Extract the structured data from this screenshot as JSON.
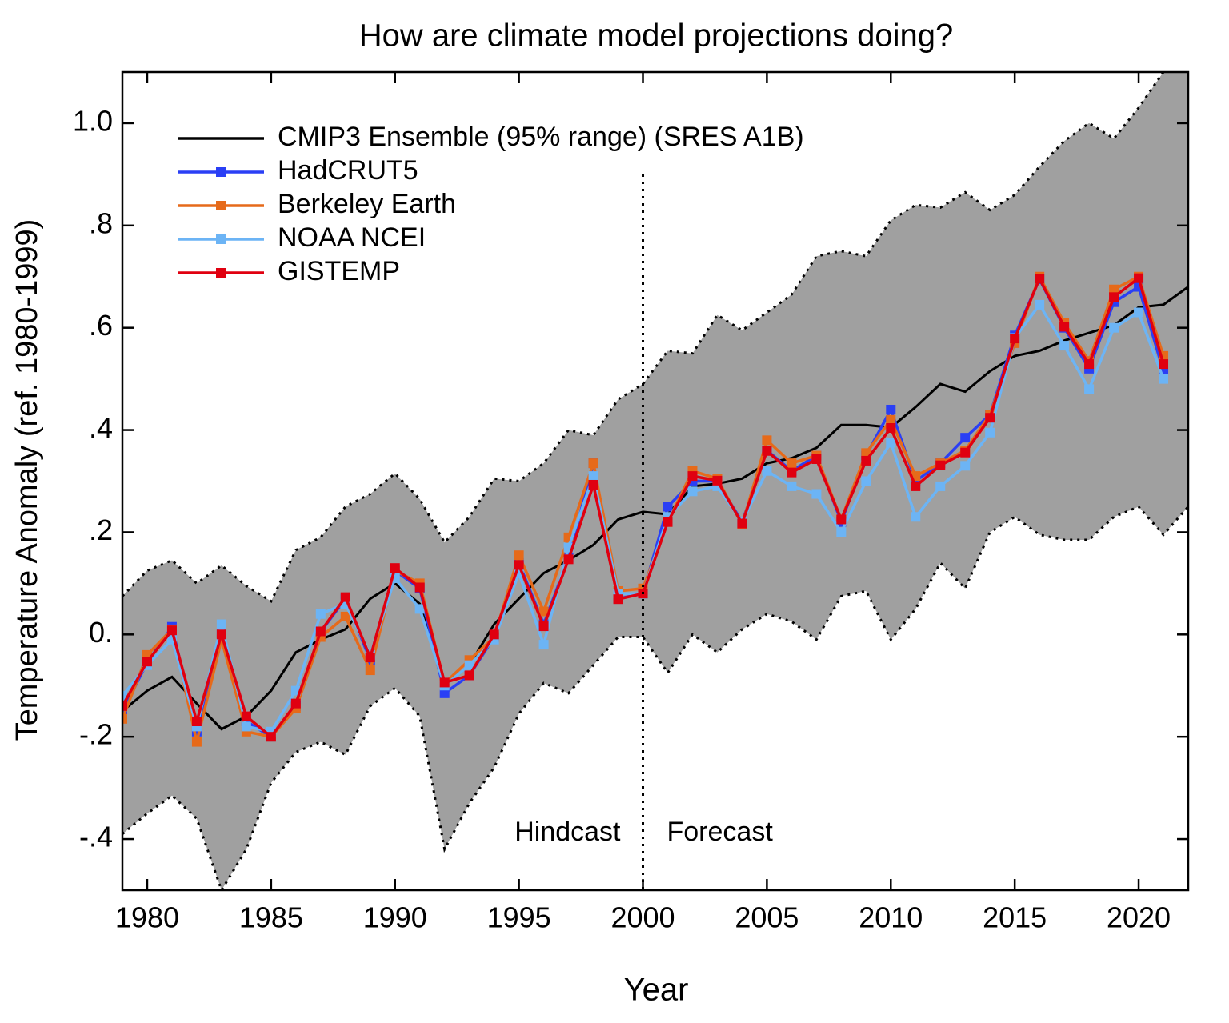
{
  "chart_data": {
    "type": "line",
    "title": "How are climate model projections doing?",
    "xlabel": "Year",
    "ylabel": "Temperature Anomaly (ref. 1980-1999)",
    "x": [
      1979,
      1980,
      1981,
      1982,
      1983,
      1984,
      1985,
      1986,
      1987,
      1988,
      1989,
      1990,
      1991,
      1992,
      1993,
      1994,
      1995,
      1996,
      1997,
      1998,
      1999,
      2000,
      2001,
      2002,
      2003,
      2004,
      2005,
      2006,
      2007,
      2008,
      2009,
      2010,
      2011,
      2012,
      2013,
      2014,
      2015,
      2016,
      2017,
      2018,
      2019,
      2020,
      2021,
      2022
    ],
    "xlim": [
      1979,
      2022
    ],
    "xticks": [
      1980,
      1985,
      1990,
      1995,
      2000,
      2005,
      2010,
      2015,
      2020
    ],
    "ylim": [
      -0.5,
      1.1
    ],
    "yticks": [
      {
        "value": -0.4,
        "label": "-.4"
      },
      {
        "value": -0.2,
        "label": "-.2"
      },
      {
        "value": 0,
        "label": "0."
      },
      {
        "value": 0.2,
        "label": ".2"
      },
      {
        "value": 0.4,
        "label": ".4"
      },
      {
        "value": 0.6,
        "label": ".6"
      },
      {
        "value": 0.8,
        "label": ".8"
      },
      {
        "value": 1.0,
        "label": "1.0"
      }
    ],
    "legend": "upper left",
    "band_color": "#a0a0a0",
    "divider": {
      "x": 2000,
      "left_label": "Hindcast",
      "right_label": "Forecast"
    },
    "series": [
      {
        "name": "CMIP3 Ensemble (95% range) (SRES A1B)",
        "color": "#000000",
        "values": [
          -0.15,
          -0.11,
          -0.083,
          -0.135,
          -0.185,
          -0.16,
          -0.11,
          -0.035,
          -0.01,
          0.01,
          0.07,
          0.1,
          0.06,
          -0.1,
          -0.06,
          0.02,
          0.07,
          0.12,
          0.145,
          0.175,
          0.225,
          0.24,
          0.235,
          0.29,
          0.295,
          0.305,
          0.335,
          0.345,
          0.365,
          0.41,
          0.41,
          0.405,
          0.445,
          0.49,
          0.475,
          0.515,
          0.545,
          0.555,
          0.575,
          0.59,
          0.605,
          0.64,
          0.645,
          0.68
        ],
        "upper": [
          0.075,
          0.125,
          0.145,
          0.1,
          0.135,
          0.095,
          0.065,
          0.165,
          0.19,
          0.25,
          0.275,
          0.315,
          0.265,
          0.18,
          0.23,
          0.305,
          0.3,
          0.335,
          0.4,
          0.39,
          0.46,
          0.49,
          0.555,
          0.55,
          0.625,
          0.595,
          0.63,
          0.665,
          0.74,
          0.75,
          0.74,
          0.81,
          0.84,
          0.835,
          0.865,
          0.83,
          0.86,
          0.915,
          0.965,
          1.0,
          0.97,
          1.03,
          1.1,
          1.14
        ],
        "lower": [
          -0.39,
          -0.35,
          -0.315,
          -0.36,
          -0.5,
          -0.42,
          -0.29,
          -0.23,
          -0.21,
          -0.235,
          -0.14,
          -0.105,
          -0.16,
          -0.42,
          -0.33,
          -0.26,
          -0.155,
          -0.095,
          -0.115,
          -0.06,
          -0.005,
          -0.005,
          -0.075,
          0.0,
          -0.035,
          0.01,
          0.04,
          0.025,
          -0.01,
          0.075,
          0.085,
          -0.01,
          0.05,
          0.14,
          0.09,
          0.2,
          0.23,
          0.195,
          0.185,
          0.185,
          0.23,
          0.25,
          0.195,
          0.25
        ]
      },
      {
        "name": "HadCRUT5",
        "color": "#2a3ff5",
        "values": [
          -0.15,
          -0.055,
          0.015,
          -0.19,
          0.0,
          -0.17,
          -0.2,
          -0.14,
          0.005,
          0.07,
          -0.05,
          0.125,
          0.09,
          -0.115,
          -0.08,
          -0.005,
          0.14,
          0.02,
          0.15,
          0.335,
          0.07,
          0.08,
          0.25,
          0.3,
          0.3,
          0.22,
          0.36,
          0.32,
          0.35,
          0.22,
          0.35,
          0.44,
          0.3,
          0.335,
          0.385,
          0.43,
          0.585,
          0.695,
          0.6,
          0.52,
          0.65,
          0.68,
          0.515,
          null
        ]
      },
      {
        "name": "Berkeley Earth",
        "color": "#e66a1a",
        "values": [
          -0.165,
          -0.04,
          0.01,
          -0.21,
          -0.01,
          -0.19,
          -0.2,
          -0.145,
          -0.005,
          0.035,
          -0.07,
          0.125,
          0.1,
          -0.095,
          -0.05,
          -0.005,
          0.155,
          0.045,
          0.19,
          0.335,
          0.085,
          0.09,
          0.22,
          0.32,
          0.305,
          0.215,
          0.38,
          0.335,
          0.35,
          0.225,
          0.355,
          0.42,
          0.31,
          0.335,
          0.36,
          0.43,
          0.57,
          0.7,
          0.61,
          0.535,
          0.675,
          0.7,
          0.545,
          null
        ]
      },
      {
        "name": "NOAA NCEI",
        "color": "#6cb4f5",
        "values": [
          -0.12,
          -0.06,
          -0.01,
          -0.18,
          0.02,
          -0.18,
          -0.19,
          -0.11,
          0.04,
          0.06,
          -0.04,
          0.11,
          0.05,
          -0.1,
          -0.06,
          -0.01,
          0.12,
          -0.02,
          0.17,
          0.31,
          0.08,
          0.08,
          0.23,
          0.28,
          0.29,
          0.22,
          0.32,
          0.29,
          0.275,
          0.2,
          0.3,
          0.375,
          0.23,
          0.29,
          0.33,
          0.395,
          0.58,
          0.645,
          0.565,
          0.48,
          0.6,
          0.63,
          0.5,
          null
        ]
      },
      {
        "name": "GISTEMP",
        "color": "#e00010",
        "values": [
          -0.14,
          -0.053,
          0.008,
          -0.17,
          0.0,
          -0.16,
          -0.2,
          -0.135,
          0.006,
          0.073,
          -0.045,
          0.13,
          0.092,
          -0.094,
          -0.08,
          0.0,
          0.136,
          0.016,
          0.147,
          0.293,
          0.069,
          0.08,
          0.22,
          0.31,
          0.301,
          0.217,
          0.359,
          0.317,
          0.343,
          0.225,
          0.34,
          0.404,
          0.29,
          0.331,
          0.356,
          0.424,
          0.579,
          0.696,
          0.602,
          0.529,
          0.66,
          0.697,
          0.529,
          null
        ]
      }
    ]
  }
}
